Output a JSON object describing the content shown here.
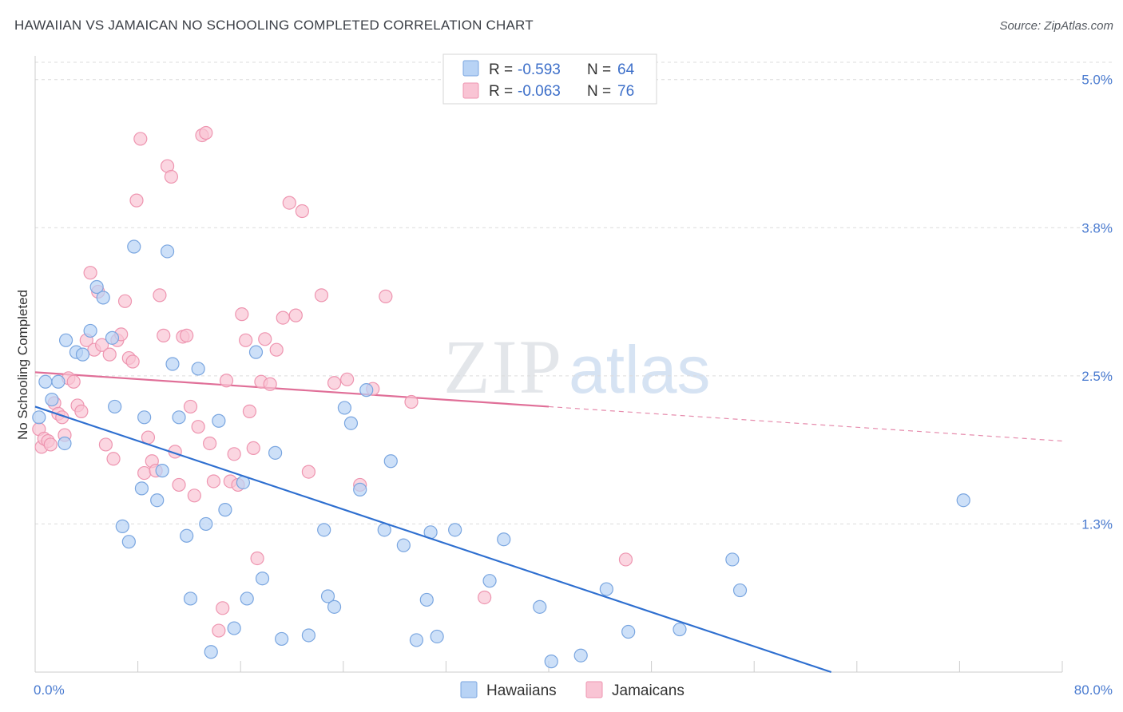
{
  "title": "HAWAIIAN VS JAMAICAN NO SCHOOLING COMPLETED CORRELATION CHART",
  "source": "Source: ZipAtlas.com",
  "watermark": {
    "zip": "ZIP",
    "atlas": "atlas"
  },
  "legend_top": {
    "rows": [
      {
        "r_label": "R =",
        "r_value": "-0.593",
        "n_label": "N =",
        "n_value": "64"
      },
      {
        "r_label": "R =",
        "r_value": "-0.063",
        "n_label": "N =",
        "n_value": "76"
      }
    ]
  },
  "colors": {
    "hawaiians_fill": "#b8d3f5",
    "hawaiians_stroke": "#7aa6e0",
    "hawaiians_line": "#2e6fd0",
    "jamaicans_fill": "#f9c4d4",
    "jamaicans_stroke": "#ee95b0",
    "jamaicans_line": "#e06f98",
    "tick_label": "#4a7bd0",
    "grid": "#dcdcdc"
  },
  "chart_data": {
    "type": "scatter",
    "xlabel": "",
    "ylabel": "No Schooling Completed",
    "xlim": [
      0,
      80
    ],
    "ylim": [
      0,
      5.2
    ],
    "x_tick_labels": [
      "0.0%",
      "80.0%"
    ],
    "y_ticks": [
      1.25,
      2.5,
      3.75,
      5.0
    ],
    "y_tick_labels": [
      "1.3%",
      "2.5%",
      "3.8%",
      "5.0%"
    ],
    "grid": "horizontal dashed",
    "legend_position": "top-center",
    "series": [
      {
        "name": "Hawaiians",
        "trend": {
          "x": [
            0,
            62
          ],
          "y": [
            2.24,
            0.0
          ],
          "solid_until": 62
        },
        "points": [
          [
            0.3,
            2.15
          ],
          [
            0.8,
            2.45
          ],
          [
            1.3,
            2.3
          ],
          [
            1.8,
            2.45
          ],
          [
            2.3,
            1.93
          ],
          [
            2.4,
            2.8
          ],
          [
            3.2,
            2.7
          ],
          [
            3.7,
            2.68
          ],
          [
            4.3,
            2.88
          ],
          [
            4.8,
            3.25
          ],
          [
            5.3,
            3.16
          ],
          [
            6.0,
            2.82
          ],
          [
            6.2,
            2.24
          ],
          [
            6.8,
            1.23
          ],
          [
            7.3,
            1.1
          ],
          [
            7.7,
            3.59
          ],
          [
            8.3,
            1.55
          ],
          [
            8.5,
            2.15
          ],
          [
            9.5,
            1.45
          ],
          [
            9.9,
            1.7
          ],
          [
            10.3,
            3.55
          ],
          [
            10.7,
            2.6
          ],
          [
            11.2,
            2.15
          ],
          [
            11.8,
            1.15
          ],
          [
            12.1,
            0.62
          ],
          [
            12.7,
            2.56
          ],
          [
            13.3,
            1.25
          ],
          [
            13.7,
            0.17
          ],
          [
            14.3,
            2.12
          ],
          [
            14.8,
            1.37
          ],
          [
            15.5,
            0.37
          ],
          [
            16.2,
            1.6
          ],
          [
            16.5,
            0.62
          ],
          [
            17.2,
            2.7
          ],
          [
            17.7,
            0.79
          ],
          [
            18.7,
            1.85
          ],
          [
            19.2,
            0.28
          ],
          [
            21.3,
            0.31
          ],
          [
            22.5,
            1.2
          ],
          [
            22.8,
            0.64
          ],
          [
            23.3,
            0.55
          ],
          [
            24.1,
            2.23
          ],
          [
            24.6,
            2.1
          ],
          [
            25.3,
            1.54
          ],
          [
            25.8,
            2.38
          ],
          [
            27.2,
            1.2
          ],
          [
            27.7,
            1.78
          ],
          [
            28.7,
            1.07
          ],
          [
            29.7,
            0.27
          ],
          [
            30.5,
            0.61
          ],
          [
            30.8,
            1.18
          ],
          [
            31.3,
            0.3
          ],
          [
            32.7,
            1.2
          ],
          [
            35.4,
            0.77
          ],
          [
            36.5,
            1.12
          ],
          [
            39.3,
            0.55
          ],
          [
            40.2,
            0.09
          ],
          [
            42.5,
            0.14
          ],
          [
            44.5,
            0.7
          ],
          [
            46.2,
            0.34
          ],
          [
            50.2,
            0.36
          ],
          [
            54.3,
            0.95
          ],
          [
            54.9,
            0.69
          ],
          [
            72.3,
            1.45
          ]
        ]
      },
      {
        "name": "Jamaicans",
        "trend": {
          "x": [
            0,
            80
          ],
          "y": [
            2.53,
            1.95
          ],
          "solid_until": 40
        },
        "points": [
          [
            0.3,
            2.05
          ],
          [
            0.5,
            1.9
          ],
          [
            0.7,
            1.97
          ],
          [
            1.0,
            1.95
          ],
          [
            1.2,
            1.92
          ],
          [
            1.5,
            2.27
          ],
          [
            1.8,
            2.18
          ],
          [
            2.1,
            2.15
          ],
          [
            2.3,
            2.0
          ],
          [
            2.6,
            2.48
          ],
          [
            3.0,
            2.45
          ],
          [
            3.3,
            2.25
          ],
          [
            3.6,
            2.2
          ],
          [
            4.0,
            2.8
          ],
          [
            4.3,
            3.37
          ],
          [
            4.6,
            2.72
          ],
          [
            4.9,
            3.21
          ],
          [
            5.2,
            2.76
          ],
          [
            5.5,
            1.92
          ],
          [
            5.8,
            2.68
          ],
          [
            6.1,
            1.8
          ],
          [
            6.4,
            2.8
          ],
          [
            6.7,
            2.85
          ],
          [
            7.0,
            3.13
          ],
          [
            7.3,
            2.65
          ],
          [
            7.6,
            2.62
          ],
          [
            7.9,
            3.98
          ],
          [
            8.2,
            4.5
          ],
          [
            8.5,
            1.68
          ],
          [
            8.8,
            1.98
          ],
          [
            9.1,
            1.78
          ],
          [
            9.4,
            1.7
          ],
          [
            9.7,
            3.18
          ],
          [
            10.0,
            2.84
          ],
          [
            10.3,
            4.27
          ],
          [
            10.6,
            4.18
          ],
          [
            10.9,
            1.86
          ],
          [
            11.2,
            1.58
          ],
          [
            11.5,
            2.83
          ],
          [
            11.8,
            2.84
          ],
          [
            12.1,
            2.24
          ],
          [
            12.4,
            1.49
          ],
          [
            12.7,
            2.07
          ],
          [
            13.0,
            4.53
          ],
          [
            13.3,
            4.55
          ],
          [
            13.6,
            1.93
          ],
          [
            13.9,
            1.61
          ],
          [
            14.3,
            0.35
          ],
          [
            14.6,
            0.54
          ],
          [
            14.9,
            2.46
          ],
          [
            15.2,
            1.61
          ],
          [
            15.5,
            1.84
          ],
          [
            15.8,
            1.58
          ],
          [
            16.1,
            3.02
          ],
          [
            16.4,
            2.8
          ],
          [
            16.7,
            2.2
          ],
          [
            17.0,
            1.89
          ],
          [
            17.3,
            0.96
          ],
          [
            17.6,
            2.45
          ],
          [
            17.9,
            2.81
          ],
          [
            18.3,
            2.43
          ],
          [
            18.8,
            2.72
          ],
          [
            19.3,
            2.99
          ],
          [
            19.8,
            3.96
          ],
          [
            20.3,
            3.01
          ],
          [
            20.8,
            3.89
          ],
          [
            21.3,
            1.69
          ],
          [
            22.3,
            3.18
          ],
          [
            23.3,
            2.44
          ],
          [
            24.3,
            2.47
          ],
          [
            25.3,
            1.58
          ],
          [
            26.3,
            2.39
          ],
          [
            27.3,
            3.17
          ],
          [
            29.3,
            2.28
          ],
          [
            35.0,
            0.63
          ],
          [
            46.0,
            0.95
          ]
        ]
      }
    ]
  },
  "bottom_legend": {
    "hawaiians": "Hawaiians",
    "jamaicans": "Jamaicans"
  }
}
